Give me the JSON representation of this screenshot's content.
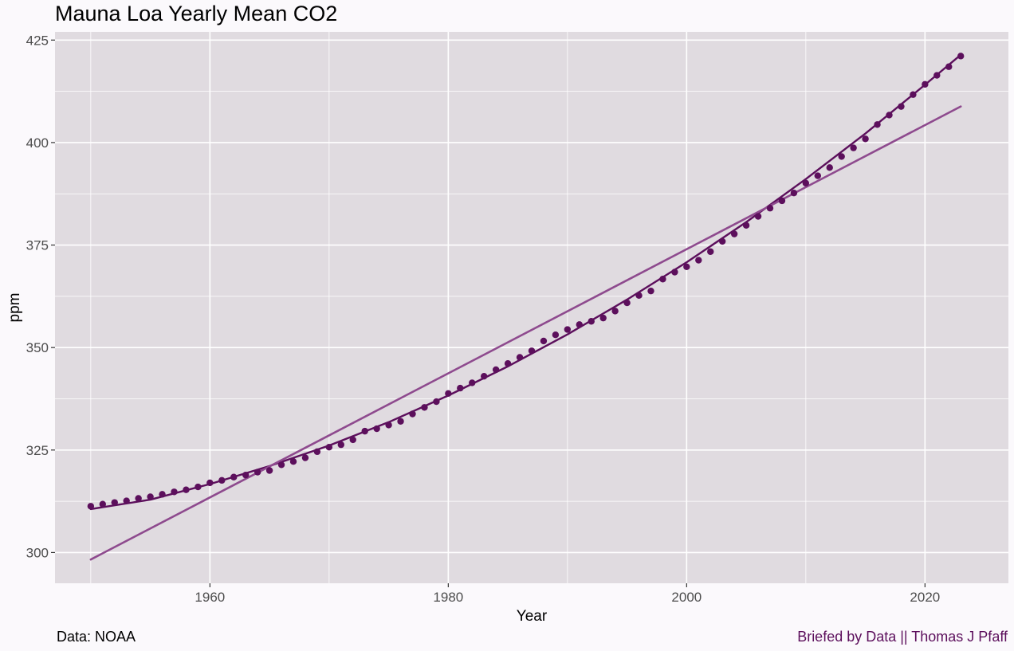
{
  "title": "Mauna Loa Yearly Mean CO2",
  "caption_left": "Data: NOAA",
  "caption_right": "Briefed by Data || Thomas J Pfaff",
  "colors": {
    "page_background": "#fbf9fc",
    "panel_background": "#e0dbe0",
    "grid": "#ffffff",
    "points": "#5c0f5c",
    "quadratic_fit": "#5c0f5c",
    "linear_fit": "#8e4a8e",
    "caption_right": "#5c0f5c"
  },
  "chart_data": {
    "type": "scatter",
    "title": "Mauna Loa Yearly Mean CO2",
    "xlabel": "Year",
    "ylabel": "ppm",
    "xlim": [
      1947,
      2027
    ],
    "ylim": [
      292.5,
      427
    ],
    "x_ticks": [
      1960,
      1980,
      2000,
      2020
    ],
    "x_tick_labels": [
      "1960",
      "1980",
      "2000",
      "2020"
    ],
    "y_ticks": [
      300,
      325,
      350,
      375,
      400,
      425
    ],
    "y_tick_labels": [
      "300",
      "325",
      "350",
      "375",
      "400",
      "425"
    ],
    "grid": true,
    "legend": "none",
    "series": [
      {
        "kind": "points",
        "x": [
          1950,
          1951,
          1952,
          1953,
          1954,
          1955,
          1956,
          1957,
          1958,
          1959,
          1960,
          1961,
          1962,
          1963,
          1964,
          1965,
          1966,
          1967,
          1968,
          1969,
          1970,
          1971,
          1972,
          1973,
          1974,
          1975,
          1976,
          1977,
          1978,
          1979,
          1980,
          1981,
          1982,
          1983,
          1984,
          1985,
          1986,
          1987,
          1988,
          1989,
          1990,
          1991,
          1992,
          1993,
          1994,
          1995,
          1996,
          1997,
          1998,
          1999,
          2000,
          2001,
          2002,
          2003,
          2004,
          2005,
          2006,
          2007,
          2008,
          2009,
          2010,
          2011,
          2012,
          2013,
          2014,
          2015,
          2016,
          2017,
          2018,
          2019,
          2020,
          2021,
          2022,
          2023
        ],
        "y": [
          311.3,
          311.8,
          312.2,
          312.6,
          313.2,
          313.6,
          314.2,
          314.8,
          315.3,
          316.0,
          317.0,
          317.6,
          318.4,
          318.9,
          319.6,
          320.0,
          321.4,
          322.2,
          323.1,
          324.6,
          325.7,
          326.3,
          327.5,
          329.6,
          330.2,
          331.1,
          332.0,
          333.8,
          335.4,
          336.8,
          338.8,
          340.1,
          341.4,
          343.0,
          344.6,
          346.1,
          347.6,
          349.2,
          351.6,
          353.1,
          354.4,
          355.6,
          356.4,
          357.2,
          358.9,
          360.9,
          362.7,
          363.8,
          366.7,
          368.4,
          369.7,
          371.3,
          373.4,
          375.9,
          377.7,
          379.8,
          382.0,
          384.0,
          385.8,
          387.7,
          390.1,
          391.9,
          393.9,
          396.6,
          398.7,
          400.9,
          404.4,
          406.7,
          408.8,
          411.7,
          414.2,
          416.4,
          418.5,
          421.1
        ]
      },
      {
        "kind": "quadratic_fit",
        "x": [
          1950,
          1955,
          1960,
          1965,
          1970,
          1975,
          1980,
          1985,
          1990,
          1995,
          2000,
          2005,
          2010,
          2015,
          2020,
          2023
        ],
        "y": [
          310.6,
          312.9,
          316.7,
          321.1,
          326.1,
          331.8,
          338.3,
          345.4,
          353.2,
          361.7,
          370.8,
          380.6,
          391.1,
          402.2,
          414.1,
          421.4
        ]
      },
      {
        "kind": "linear_fit",
        "x": [
          1950,
          2023
        ],
        "y": [
          298.3,
          408.8
        ]
      }
    ]
  }
}
